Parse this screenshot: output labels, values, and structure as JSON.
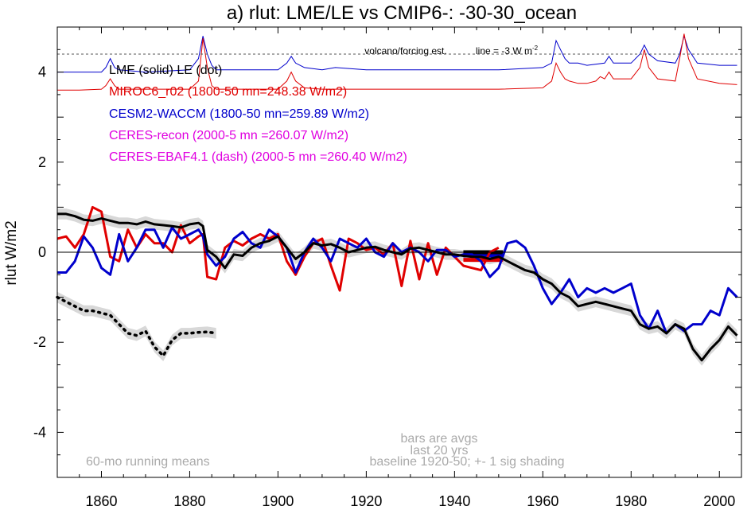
{
  "chart_data": {
    "type": "line",
    "title": "a) rlut: LME/LE vs CMIP6-: -30-30_ocean",
    "ylabel": "rlut W/m2",
    "xlabel": "",
    "xlim": [
      1850,
      2005
    ],
    "ylim": [
      -5,
      5
    ],
    "x_ticks": [
      "1860",
      "1880",
      "1900",
      "1920",
      "1940",
      "1960",
      "1980",
      "2000"
    ],
    "y_ticks": [
      "4",
      "2",
      "0",
      "-2",
      "-4"
    ],
    "y_tick_values": [
      4,
      2,
      0,
      -2,
      -4
    ],
    "x_tick_values": [
      1860,
      1880,
      1900,
      1920,
      1940,
      1960,
      1980,
      2000
    ],
    "legend": [
      {
        "text": "LME (solid)   LE (dot)",
        "color": "#000000"
      },
      {
        "text": "MIROC6_r02 (1800-50 mn=248.38 W/m2)",
        "color": "#e00000"
      },
      {
        "text": "CESM2-WACCM (1800-50 mn=259.89 W/m2)",
        "color": "#0000cc"
      },
      {
        "text": "CERES-recon (2000-5 mn =260.07 W/m2)",
        "color": "#e000e0"
      },
      {
        "text": "CERES-EBAF4.1 (dash) (2000-5 mn =260.40 W/m2)",
        "color": "#e000e0"
      }
    ],
    "annotations": {
      "volcano": "volcano/forcing est.",
      "line_label": "line = -3 W m",
      "line_label_sup": "-2",
      "bars_note_1": "bars are avgs",
      "bars_note_2": "last 20 yrs",
      "running_mean": "60-mo running means",
      "baseline": "baseline 1920-50; +- 1 sig shading"
    },
    "reference_line_y": 4.4,
    "series": [
      {
        "name": "LME (solid)",
        "color": "#000000",
        "style": "solid",
        "shaded": true,
        "x": [
          1850,
          1852,
          1854,
          1856,
          1858,
          1860,
          1862,
          1864,
          1866,
          1868,
          1870,
          1872,
          1874,
          1876,
          1878,
          1880,
          1882,
          1883,
          1884,
          1886,
          1888,
          1890,
          1892,
          1894,
          1896,
          1898,
          1900,
          1902,
          1904,
          1906,
          1908,
          1910,
          1912,
          1914,
          1916,
          1918,
          1920,
          1922,
          1924,
          1926,
          1928,
          1930,
          1932,
          1934,
          1936,
          1938,
          1940,
          1942,
          1944,
          1946,
          1948,
          1950,
          1952,
          1954,
          1956,
          1958,
          1960,
          1962,
          1964,
          1966,
          1968,
          1970,
          1972,
          1974,
          1976,
          1978,
          1980,
          1982,
          1984,
          1986,
          1988,
          1990,
          1992,
          1994,
          1996,
          1998,
          2000,
          2002,
          2004
        ],
        "y": [
          0.85,
          0.85,
          0.8,
          0.72,
          0.7,
          0.75,
          0.7,
          0.65,
          0.65,
          0.62,
          0.68,
          0.62,
          0.6,
          0.58,
          0.55,
          0.62,
          0.65,
          0.58,
          0.05,
          -0.1,
          -0.35,
          -0.05,
          -0.08,
          0.1,
          0.2,
          0.25,
          0.35,
          0.1,
          -0.15,
          0.0,
          0.2,
          0.15,
          0.18,
          0.1,
          0.0,
          0.05,
          0.1,
          0.12,
          0.05,
          0.0,
          -0.05,
          0.08,
          0.1,
          0.05,
          0.0,
          -0.05,
          -0.05,
          -0.08,
          -0.1,
          -0.1,
          -0.15,
          -0.1,
          -0.2,
          -0.3,
          -0.4,
          -0.45,
          -0.6,
          -0.7,
          -0.9,
          -1.0,
          -1.2,
          -1.15,
          -1.1,
          -1.15,
          -1.2,
          -1.25,
          -1.3,
          -1.6,
          -1.7,
          -1.65,
          -1.8,
          -1.6,
          -1.7,
          -2.15,
          -2.4,
          -2.15,
          -1.95,
          -1.65,
          -1.85
        ]
      },
      {
        "name": "LE (dot)",
        "color": "#000000",
        "style": "dot",
        "shaded": true,
        "x": [
          1850,
          1852,
          1854,
          1856,
          1858,
          1860,
          1862,
          1864,
          1866,
          1868,
          1870,
          1872,
          1874,
          1876,
          1878,
          1880,
          1882,
          1884,
          1886
        ],
        "y": [
          -1.0,
          -1.1,
          -1.2,
          -1.3,
          -1.3,
          -1.35,
          -1.4,
          -1.6,
          -1.8,
          -1.85,
          -1.75,
          -2.1,
          -2.3,
          -1.95,
          -1.8,
          -1.8,
          -1.78,
          -1.77,
          -1.8
        ]
      },
      {
        "name": "MIROC6_r02",
        "color": "#e00000",
        "style": "solid",
        "x": [
          1850,
          1852,
          1854,
          1856,
          1858,
          1860,
          1862,
          1864,
          1866,
          1868,
          1870,
          1872,
          1874,
          1876,
          1878,
          1880,
          1882,
          1883,
          1884,
          1886,
          1888,
          1890,
          1892,
          1894,
          1896,
          1898,
          1900,
          1902,
          1904,
          1906,
          1908,
          1910,
          1912,
          1914,
          1916,
          1918,
          1920,
          1922,
          1924,
          1926,
          1928,
          1930,
          1932,
          1934,
          1936,
          1938,
          1940,
          1942,
          1944,
          1946,
          1948,
          1950
        ],
        "y": [
          0.3,
          0.35,
          0.1,
          0.4,
          1.0,
          0.9,
          -0.1,
          -0.2,
          0.5,
          0.1,
          0.4,
          0.2,
          0.2,
          0.0,
          0.6,
          0.2,
          0.35,
          0.4,
          -0.55,
          -0.6,
          0.1,
          0.25,
          0.15,
          0.3,
          0.4,
          0.3,
          0.4,
          -0.2,
          -0.5,
          -0.1,
          0.2,
          0.3,
          -0.3,
          -0.85,
          0.3,
          0.2,
          0.05,
          0.1,
          -0.05,
          0.2,
          -0.75,
          0.25,
          -0.6,
          0.2,
          -0.5,
          0.1,
          -0.1,
          -0.3,
          -0.35,
          -0.4,
          0.0,
          0.1
        ]
      },
      {
        "name": "CESM2-WACCM",
        "color": "#0000cc",
        "style": "solid",
        "x": [
          1850,
          1852,
          1854,
          1856,
          1858,
          1860,
          1862,
          1864,
          1866,
          1868,
          1870,
          1872,
          1874,
          1876,
          1878,
          1880,
          1882,
          1883,
          1884,
          1886,
          1888,
          1890,
          1892,
          1894,
          1896,
          1898,
          1900,
          1902,
          1904,
          1906,
          1908,
          1910,
          1912,
          1914,
          1916,
          1918,
          1920,
          1922,
          1924,
          1926,
          1928,
          1930,
          1932,
          1934,
          1936,
          1938,
          1940,
          1942,
          1944,
          1946,
          1948,
          1950,
          1952,
          1954,
          1956,
          1958,
          1960,
          1962,
          1964,
          1966,
          1968,
          1970,
          1972,
          1974,
          1976,
          1978,
          1980,
          1982,
          1984,
          1986,
          1988,
          1990,
          1992,
          1994,
          1996,
          1998,
          2000,
          2002,
          2004
        ],
        "y": [
          -0.45,
          -0.45,
          -0.2,
          0.35,
          0.1,
          -0.35,
          -0.5,
          0.4,
          -0.2,
          0.1,
          0.5,
          0.5,
          0.1,
          0.55,
          0.3,
          0.4,
          0.5,
          0.35,
          -0.05,
          -0.3,
          -0.1,
          0.3,
          0.45,
          0.2,
          0.1,
          0.5,
          0.35,
          0.1,
          -0.45,
          0.0,
          0.3,
          0.1,
          -0.2,
          0.3,
          0.2,
          0.1,
          0.3,
          0.0,
          -0.1,
          0.2,
          0.0,
          0.1,
          0.0,
          -0.2,
          0.05,
          0.05,
          -0.1,
          -0.05,
          -0.05,
          -0.2,
          -0.55,
          -0.35,
          0.2,
          0.25,
          0.1,
          -0.3,
          -0.8,
          -1.15,
          -0.9,
          -0.6,
          -1.0,
          -0.8,
          -0.9,
          -0.8,
          -0.9,
          -0.8,
          -0.7,
          -1.4,
          -1.7,
          -1.3,
          -1.8,
          -1.6,
          -1.75,
          -1.6,
          -1.6,
          -1.3,
          -1.4,
          -0.8,
          -1.0
        ]
      }
    ],
    "volcano_series": {
      "blue": {
        "color": "#0000cc",
        "x": [
          1850,
          1855,
          1860,
          1861,
          1862,
          1863,
          1864,
          1870,
          1880,
          1882,
          1883,
          1884,
          1885,
          1886,
          1890,
          1900,
          1902,
          1903,
          1904,
          1906,
          1910,
          1913,
          1920,
          1930,
          1940,
          1950,
          1960,
          1962,
          1963,
          1964,
          1965,
          1966,
          1968,
          1970,
          1974,
          1975,
          1976,
          1980,
          1982,
          1983,
          1984,
          1986,
          1990,
          1991,
          1992,
          1993,
          1995,
          2000,
          2004
        ],
        "y": [
          4.0,
          4.0,
          4.0,
          4.1,
          4.3,
          4.1,
          4.05,
          4.0,
          4.05,
          4.3,
          4.8,
          4.4,
          4.15,
          4.05,
          4.05,
          4.05,
          4.2,
          4.35,
          4.2,
          4.1,
          4.05,
          4.1,
          4.05,
          4.05,
          4.05,
          4.05,
          4.1,
          4.2,
          4.7,
          4.5,
          4.3,
          4.2,
          4.2,
          4.15,
          4.2,
          4.35,
          4.2,
          4.2,
          4.4,
          4.6,
          4.4,
          4.25,
          4.2,
          4.4,
          4.8,
          4.5,
          4.2,
          4.15,
          4.15
        ]
      },
      "red": {
        "color": "#e00000",
        "x": [
          1850,
          1855,
          1860,
          1861,
          1862,
          1863,
          1864,
          1870,
          1880,
          1882,
          1883,
          1884,
          1885,
          1886,
          1890,
          1900,
          1902,
          1903,
          1904,
          1906,
          1910,
          1920,
          1930,
          1940,
          1950,
          1960,
          1962,
          1963,
          1964,
          1965,
          1966,
          1968,
          1970,
          1972,
          1973,
          1974,
          1975,
          1976,
          1980,
          1982,
          1983,
          1984,
          1986,
          1990,
          1991,
          1992,
          1993,
          1995,
          2000,
          2004
        ],
        "y": [
          3.6,
          3.6,
          3.62,
          3.7,
          3.85,
          3.7,
          3.62,
          3.62,
          3.62,
          3.8,
          4.75,
          4.1,
          3.7,
          3.62,
          3.62,
          3.62,
          3.8,
          4.0,
          3.8,
          3.65,
          3.62,
          3.62,
          3.62,
          3.62,
          3.62,
          3.65,
          3.8,
          4.2,
          4.0,
          3.85,
          3.8,
          3.75,
          3.75,
          3.8,
          3.9,
          3.85,
          4.0,
          3.85,
          3.85,
          4.1,
          4.5,
          4.1,
          3.85,
          3.8,
          4.3,
          4.85,
          4.3,
          3.85,
          3.75,
          3.72
        ]
      }
    },
    "bars": [
      {
        "color": "#e00000",
        "x": [
          1942,
          1951
        ],
        "y": -0.17
      },
      {
        "color": "#0000cc",
        "x": [
          1942,
          1951
        ],
        "y": -0.07
      },
      {
        "color": "#000000",
        "x": [
          1942,
          1951
        ],
        "y": 0.0
      }
    ]
  }
}
